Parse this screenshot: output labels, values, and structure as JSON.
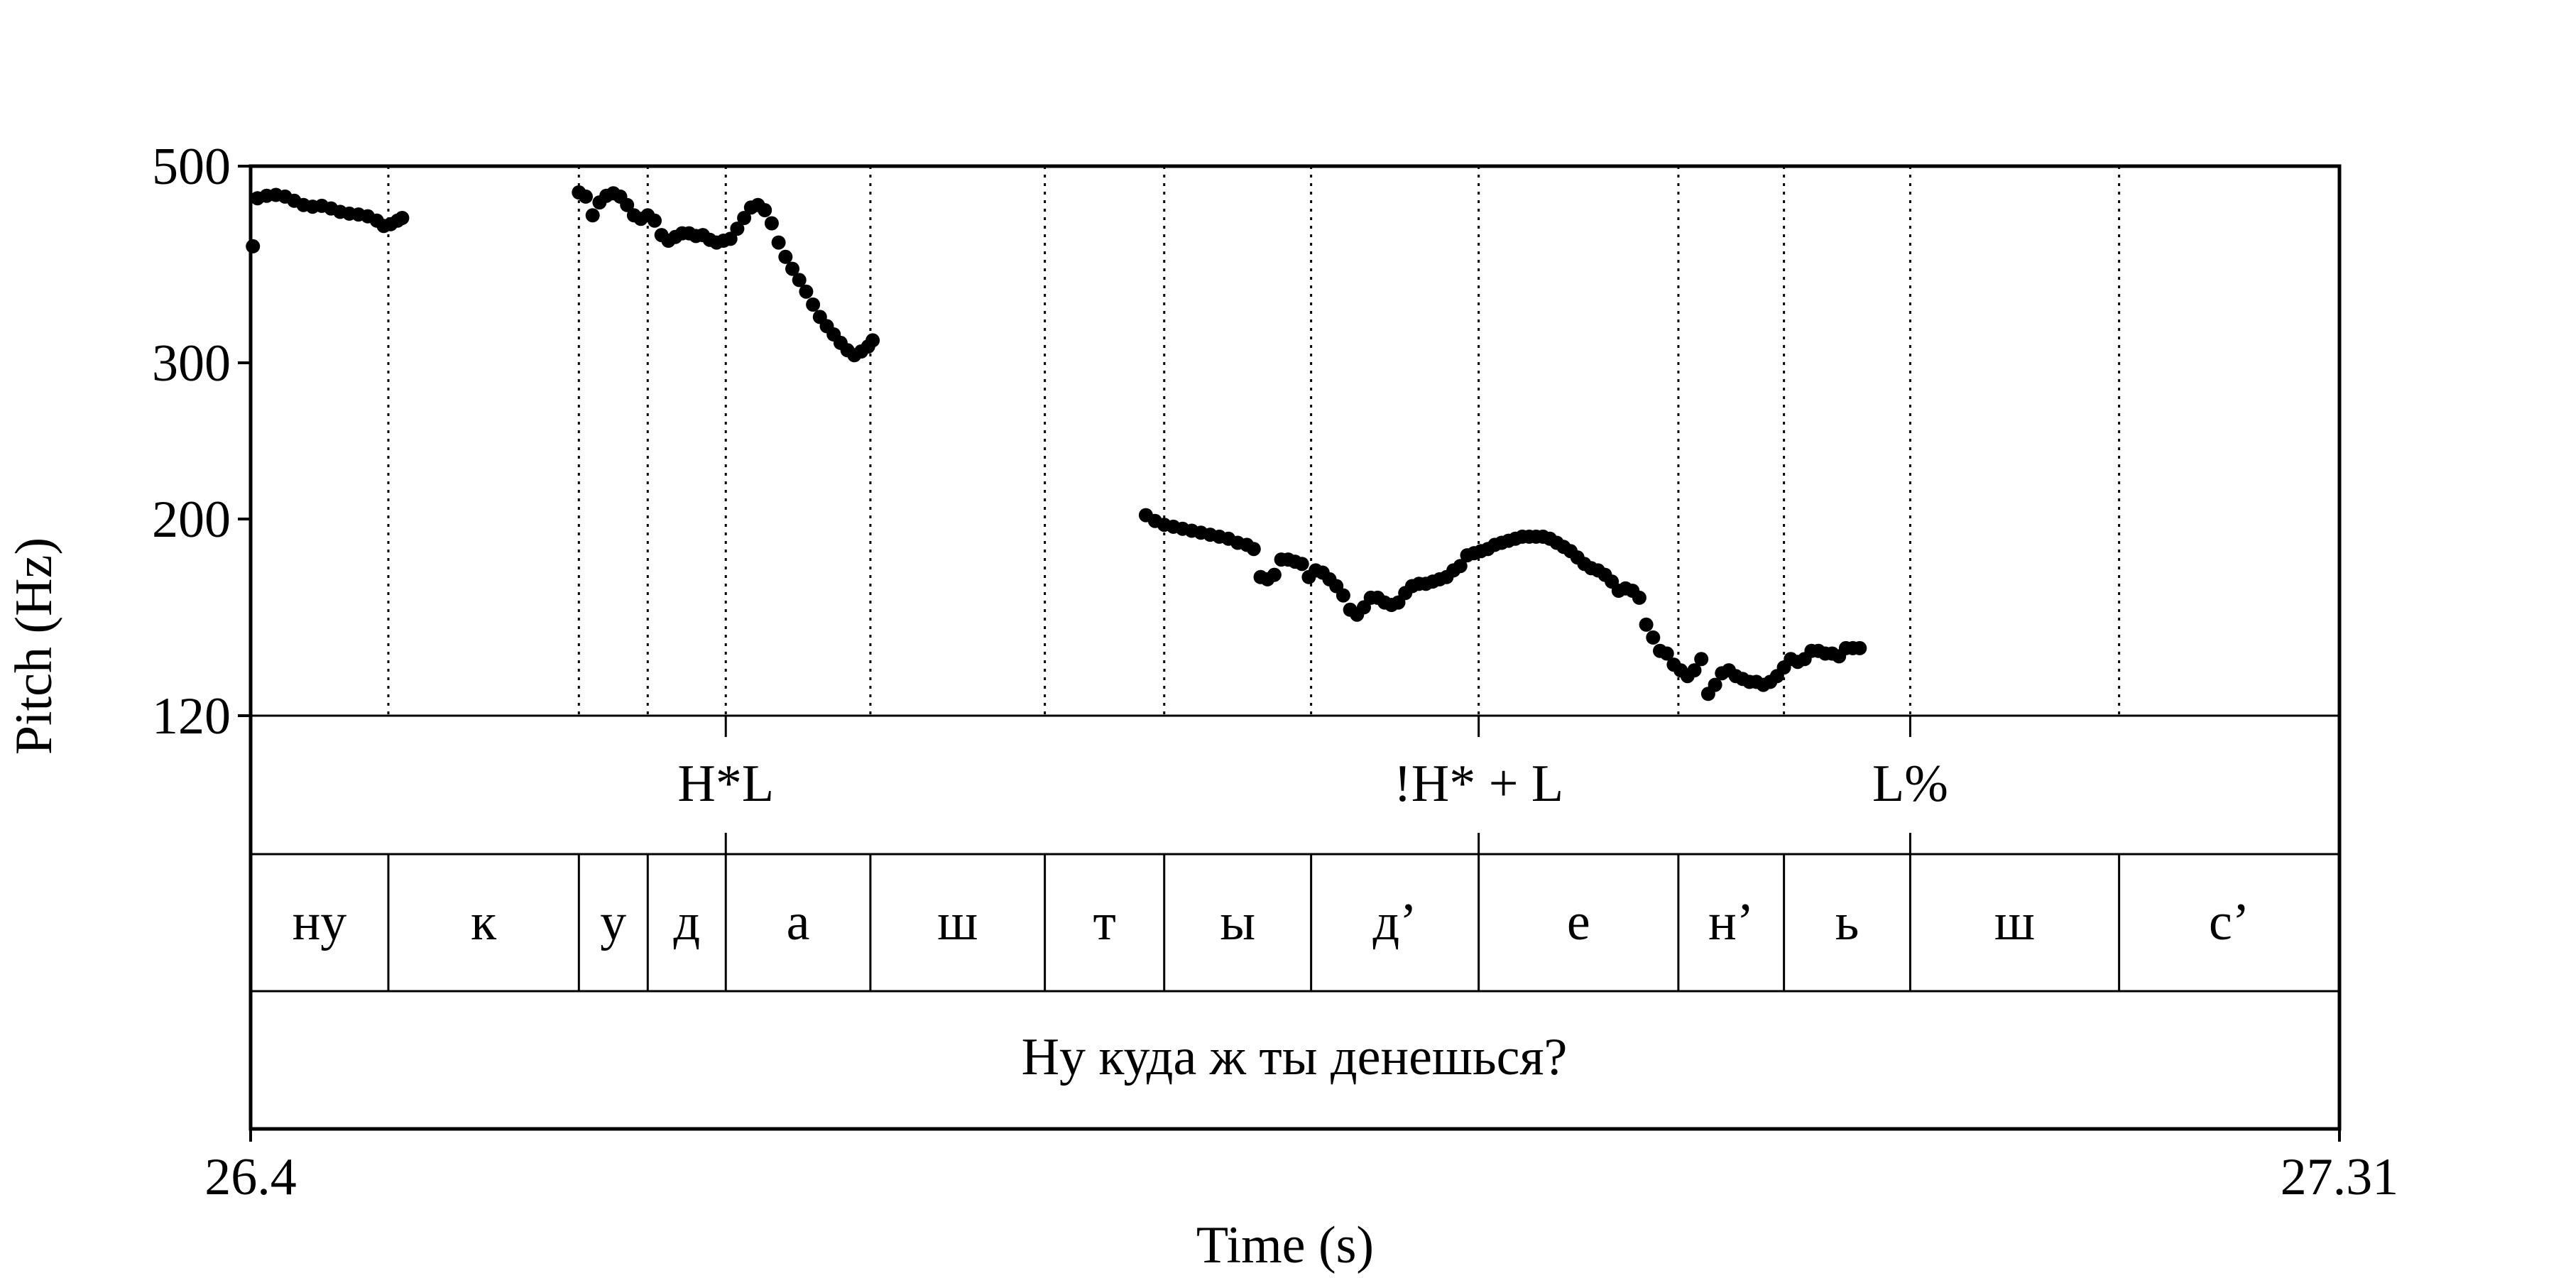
{
  "chart_data": {
    "type": "scatter",
    "title": "",
    "xlabel": "Time (s)",
    "ylabel": "Pitch (Hz)",
    "xlim": [
      26.4,
      27.31
    ],
    "ylim": [
      120,
      500
    ],
    "y_scale": "log",
    "x_tick_labels": [
      "26.4",
      "27.31"
    ],
    "y_ticks": [
      120,
      200,
      300,
      500
    ],
    "y_tick_labels": [
      "120",
      "200",
      "300",
      "500"
    ],
    "grid": false,
    "point_color": "#000000",
    "series": [
      {
        "values": [
          [
            26.401,
            406
          ],
          [
            26.403,
            460
          ],
          [
            26.407,
            463
          ],
          [
            26.411,
            464
          ],
          [
            26.415,
            462
          ],
          [
            26.419,
            457
          ],
          [
            26.423,
            452
          ],
          [
            26.427,
            450
          ],
          [
            26.431,
            451
          ],
          [
            26.435,
            448
          ],
          [
            26.439,
            444
          ],
          [
            26.443,
            442
          ],
          [
            26.447,
            441
          ],
          [
            26.451,
            439
          ],
          [
            26.455,
            434
          ],
          [
            26.458,
            428
          ],
          [
            26.461,
            430
          ],
          [
            26.464,
            434
          ],
          [
            26.466,
            437
          ],
          [
            26.543,
            467
          ],
          [
            26.546,
            462
          ],
          [
            26.549,
            440
          ],
          [
            26.552,
            455
          ],
          [
            26.555,
            463
          ],
          [
            26.558,
            466
          ],
          [
            26.561,
            462
          ],
          [
            26.564,
            452
          ],
          [
            26.567,
            440
          ],
          [
            26.57,
            436
          ],
          [
            26.573,
            440
          ],
          [
            26.576,
            434
          ],
          [
            26.579,
            418
          ],
          [
            26.582,
            412
          ],
          [
            26.585,
            416
          ],
          [
            26.588,
            420
          ],
          [
            26.591,
            420
          ],
          [
            26.594,
            417
          ],
          [
            26.597,
            418
          ],
          [
            26.6,
            413
          ],
          [
            26.603,
            410
          ],
          [
            26.606,
            412
          ],
          [
            26.609,
            414
          ],
          [
            26.612,
            425
          ],
          [
            26.615,
            437
          ],
          [
            26.618,
            449
          ],
          [
            26.621,
            452
          ],
          [
            26.624,
            446
          ],
          [
            26.627,
            431
          ],
          [
            26.63,
            410
          ],
          [
            26.633,
            395
          ],
          [
            26.636,
            383
          ],
          [
            26.639,
            372
          ],
          [
            26.642,
            361
          ],
          [
            26.645,
            349
          ],
          [
            26.648,
            338
          ],
          [
            26.651,
            330
          ],
          [
            26.654,
            323
          ],
          [
            26.657,
            316
          ],
          [
            26.66,
            310
          ],
          [
            26.663,
            306
          ],
          [
            26.666,
            309
          ],
          [
            26.669,
            313
          ],
          [
            26.671,
            318
          ]
        ]
      },
      {
        "values": [
          [
            26.79,
            202
          ],
          [
            26.794,
            199
          ],
          [
            26.798,
            197
          ],
          [
            26.802,
            196
          ],
          [
            26.806,
            195
          ],
          [
            26.81,
            194
          ],
          [
            26.814,
            193
          ],
          [
            26.818,
            192
          ],
          [
            26.822,
            191
          ],
          [
            26.826,
            190
          ],
          [
            26.83,
            188
          ],
          [
            26.834,
            187
          ],
          [
            26.837,
            185
          ],
          [
            26.84,
            172
          ],
          [
            26.843,
            171
          ],
          [
            26.846,
            173
          ],
          [
            26.849,
            180
          ],
          [
            26.852,
            180
          ],
          [
            26.855,
            179
          ],
          [
            26.858,
            178
          ],
          [
            26.861,
            172
          ],
          [
            26.864,
            175
          ],
          [
            26.867,
            174
          ],
          [
            26.87,
            171
          ],
          [
            26.873,
            168
          ],
          [
            26.876,
            164
          ],
          [
            26.879,
            158
          ],
          [
            26.882,
            156
          ],
          [
            26.885,
            159
          ],
          [
            26.888,
            163
          ],
          [
            26.891,
            163
          ],
          [
            26.894,
            161
          ],
          [
            26.897,
            160
          ],
          [
            26.9,
            161
          ],
          [
            26.903,
            165
          ],
          [
            26.906,
            168
          ],
          [
            26.909,
            169
          ],
          [
            26.912,
            169
          ],
          [
            26.915,
            170
          ],
          [
            26.918,
            171
          ],
          [
            26.921,
            172
          ],
          [
            26.924,
            175
          ],
          [
            26.927,
            177
          ],
          [
            26.93,
            182
          ],
          [
            26.933,
            183
          ],
          [
            26.936,
            184
          ],
          [
            26.939,
            185
          ],
          [
            26.942,
            187
          ],
          [
            26.945,
            188
          ],
          [
            26.948,
            189
          ],
          [
            26.951,
            190
          ],
          [
            26.954,
            191
          ],
          [
            26.957,
            191
          ],
          [
            26.96,
            191
          ],
          [
            26.963,
            191
          ],
          [
            26.966,
            190
          ],
          [
            26.969,
            188
          ],
          [
            26.972,
            186
          ],
          [
            26.975,
            184
          ],
          [
            26.978,
            181
          ],
          [
            26.981,
            178
          ],
          [
            26.984,
            176
          ],
          [
            26.987,
            175
          ],
          [
            26.99,
            173
          ],
          [
            26.993,
            170
          ],
          [
            26.996,
            166
          ],
          [
            26.999,
            167
          ],
          [
            27.002,
            166
          ],
          [
            27.005,
            163
          ],
          [
            27.008,
            152
          ],
          [
            27.011,
            147
          ],
          [
            27.014,
            142
          ],
          [
            27.017,
            141
          ],
          [
            27.02,
            137
          ],
          [
            27.023,
            135
          ],
          [
            27.026,
            133
          ],
          [
            27.029,
            135
          ],
          [
            27.032,
            139
          ],
          [
            27.035,
            127
          ],
          [
            27.038,
            130
          ],
          [
            27.041,
            134
          ],
          [
            27.044,
            135
          ],
          [
            27.047,
            133
          ],
          [
            27.05,
            132
          ],
          [
            27.053,
            131
          ],
          [
            27.056,
            131
          ],
          [
            27.059,
            130
          ],
          [
            27.062,
            131
          ],
          [
            27.065,
            133
          ],
          [
            27.068,
            136
          ],
          [
            27.071,
            139
          ],
          [
            27.074,
            138
          ],
          [
            27.077,
            139
          ],
          [
            27.08,
            142
          ],
          [
            27.083,
            142
          ],
          [
            27.086,
            141
          ],
          [
            27.089,
            141
          ],
          [
            27.092,
            140
          ],
          [
            27.095,
            143
          ],
          [
            27.098,
            143
          ],
          [
            27.101,
            143
          ]
        ]
      }
    ],
    "boundaries": [
      26.46,
      26.543,
      26.573,
      26.607,
      26.67,
      26.746,
      26.798,
      26.862,
      26.935,
      27.022,
      27.068,
      27.123,
      27.214
    ],
    "tones": [
      {
        "label": "H*L",
        "time": 26.607
      },
      {
        "label": "!H* + L",
        "time": 26.935
      },
      {
        "label": "L%",
        "time": 27.123
      }
    ],
    "segments": [
      {
        "label": "ну",
        "start": 26.4,
        "end": 26.46
      },
      {
        "label": "к",
        "start": 26.46,
        "end": 26.543
      },
      {
        "label": "у",
        "start": 26.543,
        "end": 26.573
      },
      {
        "label": "д",
        "start": 26.573,
        "end": 26.607
      },
      {
        "label": "а",
        "start": 26.607,
        "end": 26.67
      },
      {
        "label": "ш",
        "start": 26.67,
        "end": 26.746
      },
      {
        "label": "т",
        "start": 26.746,
        "end": 26.798
      },
      {
        "label": "ы",
        "start": 26.798,
        "end": 26.862
      },
      {
        "label": "д’",
        "start": 26.862,
        "end": 26.935
      },
      {
        "label": "е",
        "start": 26.935,
        "end": 27.022
      },
      {
        "label": "н’",
        "start": 27.022,
        "end": 27.068
      },
      {
        "label": "ь",
        "start": 27.068,
        "end": 27.123
      },
      {
        "label": "ш",
        "start": 27.123,
        "end": 27.214
      },
      {
        "label": "с’",
        "start": 27.214,
        "end": 27.31
      }
    ],
    "sentence": "Ну куда ж ты денешься?"
  }
}
